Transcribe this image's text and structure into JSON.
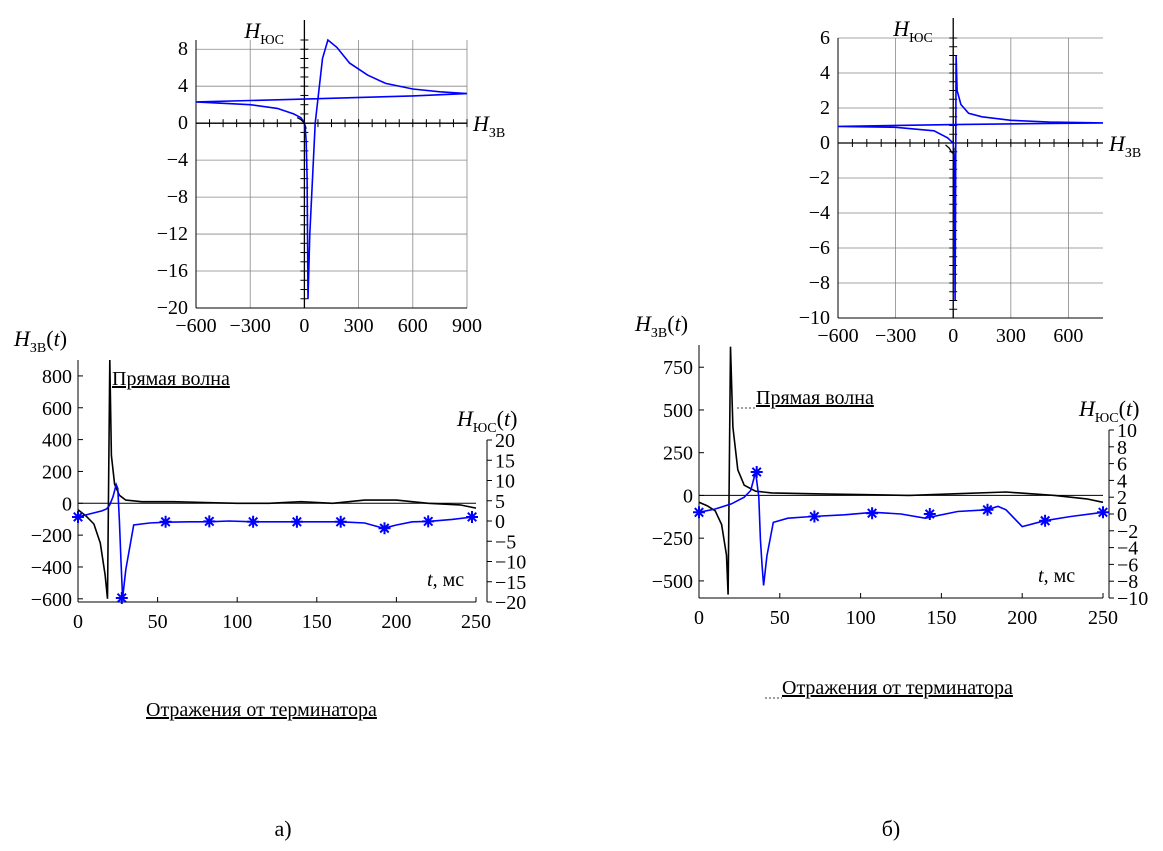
{
  "panels": [
    {
      "label": "а)",
      "colors": {
        "zv": "#000000",
        "yus": "#0000ff"
      },
      "top": {
        "xlabel": "H",
        "xlabel_sub": "ЗВ",
        "ylabel": "H",
        "ylabel_sub": "ЮС",
        "xlim": [
          -600,
          900
        ],
        "ylim": [
          -20,
          9
        ],
        "xticks": [
          -600,
          -300,
          0,
          300,
          600,
          900
        ],
        "yticks": [
          8,
          4,
          0,
          -4,
          -8,
          -12,
          -16,
          -20
        ],
        "tick_labels_x": [
          "−600",
          "−300",
          "0",
          "300",
          "600",
          "900"
        ],
        "tick_labels_y": [
          "8",
          "4",
          "0",
          "−4",
          "−8",
          "−12",
          "−16",
          "−20"
        ]
      },
      "bottom": {
        "xlim": [
          0,
          250
        ],
        "ylim_left": [
          -620,
          900
        ],
        "ylim_right": [
          -20,
          20
        ],
        "xticks": [
          0,
          50,
          100,
          150,
          200,
          250
        ],
        "yticks_left": [
          800,
          600,
          400,
          200,
          0,
          -200,
          -400,
          -600
        ],
        "yticks_right": [
          20,
          15,
          10,
          5,
          0,
          -5,
          -10,
          -15,
          -20
        ],
        "tick_labels_x": [
          "0",
          "50",
          "100",
          "150",
          "200",
          "250"
        ],
        "tick_labels_left": [
          "800",
          "600",
          "400",
          "200",
          "0",
          "−200",
          "−400",
          "−600"
        ],
        "tick_labels_right": [
          "20",
          "15",
          "10",
          "5",
          "0",
          "−5",
          "−10",
          "−15",
          "−20"
        ],
        "left_label": "H",
        "left_label_sub": "ЗВ",
        "left_label_arg": "(t)",
        "right_label": "H",
        "right_label_sub": "ЮС",
        "right_label_arg": "(t)",
        "xlabel_t": "t",
        "xlabel_unit": ", мс",
        "annotation_direct": "Прямая волна",
        "annotation_reflect": "Отражения от терминатора"
      }
    },
    {
      "label": "б)",
      "colors": {
        "zv": "#000000",
        "yus": "#0000ff"
      },
      "top": {
        "xlabel": "H",
        "xlabel_sub": "ЗВ",
        "ylabel": "H",
        "ylabel_sub": "ЮС",
        "xlim": [
          -600,
          780
        ],
        "ylim": [
          -10,
          6
        ],
        "xticks": [
          -600,
          -300,
          0,
          300,
          600
        ],
        "yticks": [
          6,
          4,
          2,
          0,
          -2,
          -4,
          -6,
          -8,
          -10
        ],
        "tick_labels_x": [
          "−600",
          "−300",
          "0",
          "300",
          "600"
        ],
        "tick_labels_y": [
          "6",
          "4",
          "2",
          "0",
          "−2",
          "−4",
          "−6",
          "−8",
          "−10"
        ]
      },
      "bottom": {
        "xlim": [
          0,
          250
        ],
        "ylim_left": [
          -600,
          880
        ],
        "ylim_right": [
          -10,
          10
        ],
        "xticks": [
          0,
          50,
          100,
          150,
          200,
          250
        ],
        "yticks_left": [
          750,
          500,
          250,
          0,
          -250,
          -500
        ],
        "yticks_right": [
          10,
          8,
          6,
          4,
          2,
          0,
          -2,
          -4,
          -6,
          -8,
          -10
        ],
        "tick_labels_x": [
          "0",
          "50",
          "100",
          "150",
          "200",
          "250"
        ],
        "tick_labels_left": [
          "750",
          "500",
          "250",
          "0",
          "−250",
          "−500"
        ],
        "tick_labels_right": [
          "10",
          "8",
          "6",
          "4",
          "2",
          "0",
          "−2",
          "−4",
          "−6",
          "−8",
          "−10"
        ],
        "left_label": "H",
        "left_label_sub": "ЗВ",
        "left_label_arg": "(t)",
        "right_label": "H",
        "right_label_sub": "ЮС",
        "right_label_arg": "(t)",
        "xlabel_t": "t",
        "xlabel_unit": ", мс",
        "annotation_direct": "Прямая волна",
        "annotation_reflect": "Отражения от терминатора"
      }
    }
  ],
  "chart_data": [
    {
      "type": "line",
      "panel": "а) top",
      "xlim": [
        -600,
        900
      ],
      "ylim": [
        -20,
        9
      ],
      "grid": true,
      "series": [
        {
          "x": [
            -600,
            -300,
            -150,
            -60,
            -20,
            -5,
            0,
            5,
            10,
            15,
            20,
            30,
            60,
            100,
            130,
            180,
            250,
            350,
            450,
            600,
            750,
            900,
            600,
            0,
            -600
          ],
          "y": [
            2.3,
            2.0,
            1.6,
            1.0,
            0.6,
            0.2,
            0,
            -0.6,
            -2,
            -6,
            -19,
            -12,
            0,
            7,
            9,
            8.2,
            6.5,
            5.2,
            4.3,
            3.7,
            3.4,
            3.2,
            2.95,
            2.6,
            2.3
          ]
        },
        {
          "x": [
            -40,
            -20,
            -10,
            0,
            5,
            10
          ],
          "y": [
            0.6,
            0.4,
            0.2,
            0,
            -0.3,
            -0.6
          ]
        }
      ]
    },
    {
      "type": "line",
      "panel": "а) bottom",
      "x": [
        0,
        250
      ],
      "xlim": [
        0,
        250
      ],
      "grid": false,
      "series": [
        {
          "x": [
            0,
            5,
            10,
            14,
            17,
            18.5,
            20,
            21,
            23,
            26,
            30,
            40,
            60,
            80,
            100,
            120,
            140,
            160,
            180,
            200,
            220,
            240,
            250
          ],
          "y": [
            -40,
            -80,
            -130,
            -250,
            -450,
            -600,
            900,
            300,
            120,
            50,
            20,
            10,
            10,
            5,
            0,
            0,
            10,
            0,
            20,
            20,
            0,
            -10,
            -30
          ]
        },
        {
          "x": [
            0,
            5,
            10,
            15,
            18,
            20,
            22,
            24,
            25,
            26,
            27,
            28,
            30,
            35,
            45,
            55,
            70,
            82,
            95,
            110,
            125,
            137,
            150,
            165,
            180,
            192,
            200,
            210,
            220,
            235,
            248
          ],
          "y": [
            1,
            1.5,
            2,
            2.5,
            3,
            4,
            6,
            9,
            8,
            0,
            -10,
            -19,
            -12,
            -1,
            -0.5,
            -0.3,
            -0.2,
            -0.2,
            0,
            -0.2,
            -0.2,
            -0.2,
            -0.2,
            -0.2,
            -0.5,
            -1.8,
            -1,
            -0.2,
            -0.1,
            0.4,
            1.0
          ]
        },
        {
          "markers_x": [
            0,
            27.5,
            55,
            82.5,
            110,
            137.5,
            165,
            192.5,
            220,
            247.5
          ],
          "markers_y": [
            1,
            -19,
            -0.2,
            -0.1,
            -0.2,
            -0.2,
            -0.2,
            -1.8,
            -0.1,
            1.0
          ]
        }
      ]
    },
    {
      "type": "line",
      "panel": "б) top",
      "xlim": [
        -600,
        780
      ],
      "ylim": [
        -10,
        6
      ],
      "grid": true,
      "series": [
        {
          "x": [
            -600,
            -300,
            -100,
            -30,
            -10,
            0,
            5,
            10,
            12,
            15,
            20,
            40,
            80,
            150,
            300,
            500,
            780,
            500,
            0,
            -600
          ],
          "y": [
            0.95,
            0.9,
            0.7,
            0.3,
            0.1,
            0,
            -0.8,
            -9.0,
            -4,
            5.0,
            3,
            2.2,
            1.7,
            1.5,
            1.3,
            1.2,
            1.15,
            1.12,
            1.05,
            0.95
          ]
        },
        {
          "x": [
            -40,
            -20,
            -10,
            0,
            5
          ],
          "y": [
            -0.1,
            -0.3,
            -0.5,
            -0.6,
            -0.3
          ]
        }
      ]
    },
    {
      "type": "line",
      "panel": "б) bottom",
      "x": [
        0,
        250
      ],
      "xlim": [
        0,
        250
      ],
      "grid": false,
      "series": [
        {
          "x": [
            0,
            5,
            10,
            14,
            17,
            18,
            19.5,
            21,
            24,
            28,
            35,
            45,
            60,
            80,
            100,
            130,
            160,
            190,
            220,
            240,
            250
          ],
          "y": [
            -40,
            -60,
            -90,
            -170,
            -350,
            -580,
            870,
            400,
            150,
            60,
            25,
            15,
            12,
            8,
            5,
            0,
            10,
            20,
            0,
            -20,
            -40
          ]
        },
        {
          "x": [
            0,
            10,
            20,
            28,
            32,
            35,
            37,
            38,
            39,
            40,
            42,
            46,
            55,
            70,
            90,
            108,
            125,
            140,
            160,
            178,
            185,
            190,
            200,
            214,
            230,
            250
          ],
          "y": [
            0.2,
            0.6,
            1.2,
            2.0,
            2.8,
            5.0,
            2,
            -3,
            -6,
            -8.5,
            -5,
            -1,
            -0.5,
            -0.3,
            -0.1,
            0.2,
            0.0,
            -0.5,
            0.3,
            0.5,
            0.9,
            0.5,
            -1.5,
            -0.8,
            -0.3,
            0.2
          ]
        },
        {
          "markers_x": [
            0,
            35.7,
            71.4,
            107.1,
            142.8,
            178.5,
            214.2,
            250
          ],
          "markers_y": [
            0.2,
            5.0,
            -0.3,
            0.1,
            0.0,
            0.5,
            -0.8,
            0.2
          ]
        }
      ]
    }
  ]
}
